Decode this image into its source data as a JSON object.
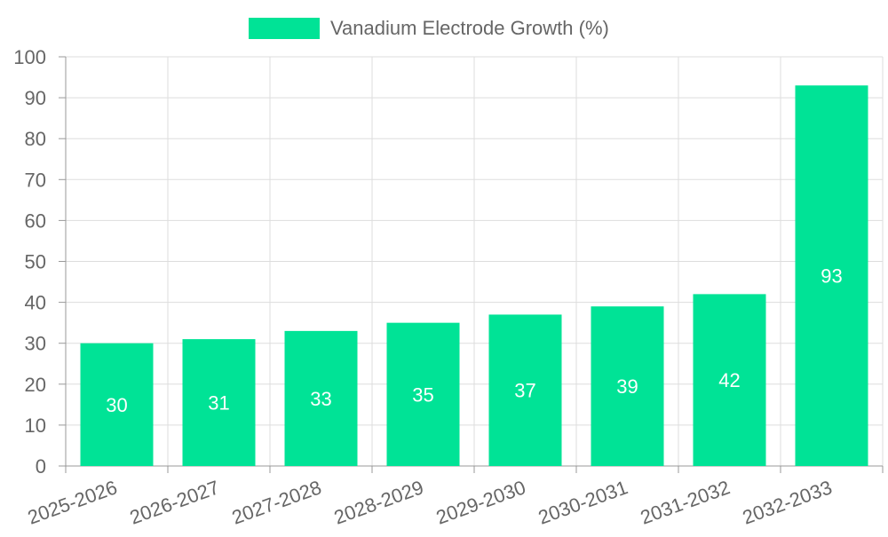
{
  "chart_data": {
    "type": "bar",
    "title": "",
    "xlabel": "",
    "ylabel": "",
    "categories": [
      "2025-2026",
      "2026-2027",
      "2027-2028",
      "2028-2029",
      "2029-2030",
      "2030-2031",
      "2031-2032",
      "2032-2033"
    ],
    "series": [
      {
        "name": "Vanadium Electrode Growth (%)",
        "values": [
          30,
          31,
          33,
          35,
          37,
          39,
          42,
          93
        ],
        "color": "#00e396"
      }
    ],
    "ylim": [
      0,
      100
    ],
    "ytick_step": 10,
    "yticks": [
      "0",
      "10",
      "20",
      "30",
      "40",
      "50",
      "60",
      "70",
      "80",
      "90",
      "100"
    ],
    "grid": true,
    "legend_position": "top-center",
    "data_labels": true
  },
  "colors": {
    "grid": "#dddddd",
    "axis": "#999999",
    "tick_text": "#666666",
    "data_label": "#ffffff"
  }
}
